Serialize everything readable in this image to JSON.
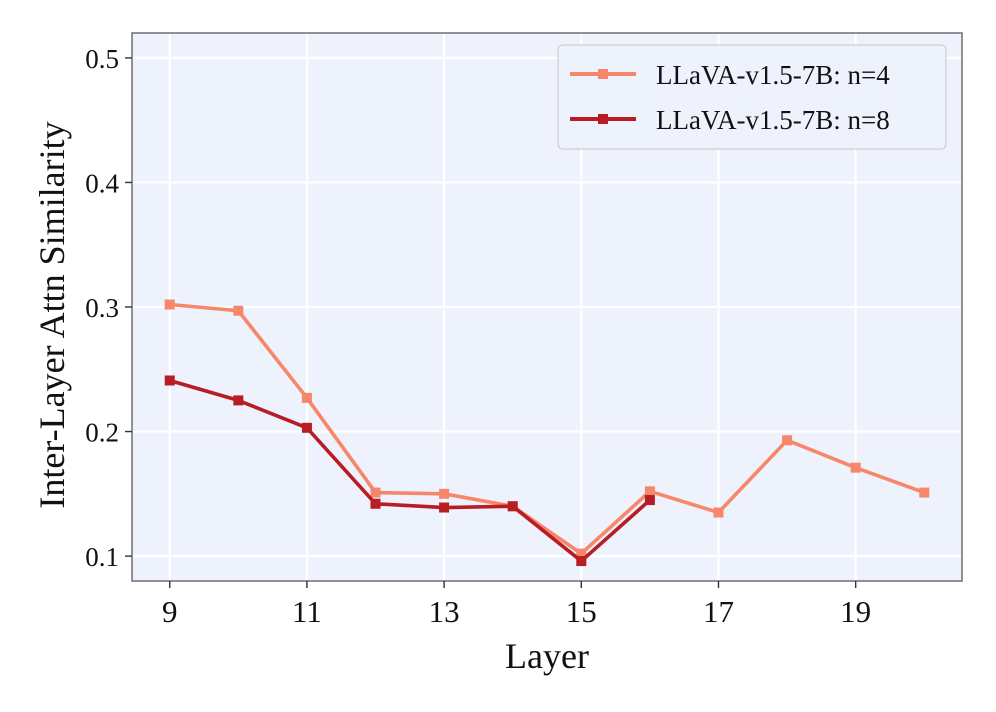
{
  "chart_data": {
    "type": "line",
    "title": "",
    "xlabel": "Layer",
    "ylabel": "Inter-Layer Attn Similarity",
    "xlim": [
      8.45,
      20.55
    ],
    "ylim": [
      0.08,
      0.52
    ],
    "xticks": [
      9,
      11,
      13,
      15,
      17,
      19
    ],
    "xtick_labels": [
      "9",
      "11",
      "13",
      "15",
      "17",
      "19"
    ],
    "yticks": [
      0.1,
      0.2,
      0.3,
      0.4,
      0.5
    ],
    "ytick_labels": [
      "0.1",
      "0.2",
      "0.3",
      "0.4",
      "0.5"
    ],
    "grid": true,
    "legend_position": "top-right",
    "series": [
      {
        "name": "LLaVA-v1.5-7B: n=4",
        "color": "#F6876A",
        "marker": "square",
        "x": [
          9,
          10,
          11,
          12,
          13,
          14,
          15,
          16,
          17,
          18,
          19,
          20
        ],
        "y": [
          0.302,
          0.297,
          0.227,
          0.151,
          0.15,
          0.14,
          0.102,
          0.152,
          0.135,
          0.193,
          0.171,
          0.151
        ]
      },
      {
        "name": "LLaVA-v1.5-7B: n=8",
        "color": "#B81C24",
        "marker": "square",
        "x": [
          9,
          10,
          11,
          12,
          13,
          14,
          15,
          16
        ],
        "y": [
          0.241,
          0.225,
          0.203,
          0.142,
          0.139,
          0.14,
          0.096,
          0.145
        ]
      }
    ]
  },
  "style": {
    "plot_background": "#EEF2FC",
    "grid_color": "#FFFFFF",
    "frame_color": "#6E6E6E"
  }
}
